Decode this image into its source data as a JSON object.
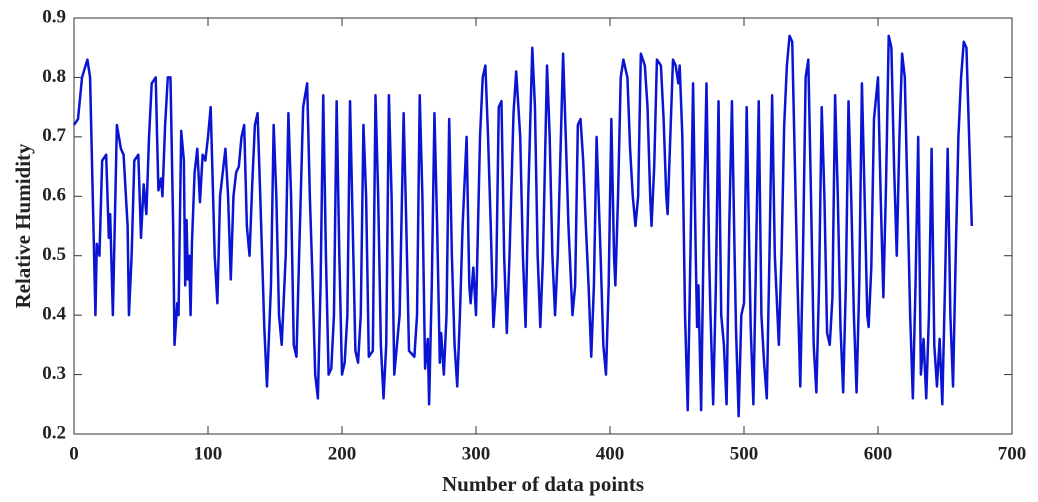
{
  "chart_data": {
    "type": "line",
    "x_label": "Number of data points",
    "y_label": "Relative Humidity",
    "color": "#0a14d2",
    "xlim": [
      0,
      700
    ],
    "xticks": [
      0,
      100,
      200,
      300,
      400,
      500,
      600,
      700
    ],
    "ylim": [
      0.2,
      0.9
    ],
    "yticks": [
      0.2,
      0.3,
      0.4,
      0.5,
      0.6,
      0.7,
      0.8,
      0.9
    ],
    "x": [
      0,
      3,
      6,
      10,
      12,
      15,
      16,
      17,
      19,
      21,
      24,
      25,
      26,
      27,
      29,
      32,
      35,
      37,
      40,
      41,
      43,
      45,
      48,
      50,
      52,
      54,
      56,
      58,
      61,
      62,
      63,
      65,
      66,
      68,
      70,
      72,
      74,
      75,
      77,
      78,
      80,
      82,
      83,
      84,
      85,
      86,
      87,
      88,
      90,
      92,
      94,
      96,
      98,
      100,
      102,
      105,
      107,
      109,
      111,
      113,
      115,
      117,
      119,
      121,
      123,
      125,
      127,
      129,
      131,
      133,
      135,
      137,
      139,
      142,
      144,
      147,
      149,
      151,
      153,
      155,
      158,
      160,
      162,
      164,
      166,
      168,
      171,
      174,
      176,
      178,
      180,
      182,
      184,
      186,
      188,
      190,
      192,
      194,
      196,
      198,
      200,
      202,
      204,
      206,
      208,
      210,
      212,
      214,
      216,
      218,
      220,
      223,
      225,
      227,
      229,
      231,
      233,
      235,
      237,
      239,
      241,
      243,
      246,
      248,
      250,
      254,
      256,
      258,
      260,
      262,
      264,
      265,
      267,
      269,
      271,
      273,
      274,
      276,
      278,
      280,
      282,
      284,
      286,
      288,
      290,
      293,
      295,
      296,
      298,
      300,
      303,
      305,
      307,
      309,
      311,
      313,
      315,
      317,
      319,
      321,
      323,
      325,
      328,
      330,
      333,
      335,
      337,
      339,
      342,
      344,
      346,
      348,
      350,
      353,
      355,
      357,
      359,
      361,
      365,
      367,
      369,
      372,
      374,
      376,
      378,
      380,
      382,
      384,
      386,
      388,
      390,
      393,
      395,
      397,
      399,
      401,
      403,
      404,
      406,
      408,
      410,
      413,
      415,
      417,
      419,
      421,
      423,
      426,
      428,
      430,
      431,
      433,
      435,
      438,
      440,
      442,
      443,
      445,
      447,
      449,
      451,
      452,
      454,
      456,
      458,
      460,
      462,
      464,
      465,
      466,
      468,
      470,
      472,
      474,
      475,
      477,
      479,
      481,
      483,
      485,
      487,
      489,
      491,
      493,
      494,
      496,
      498,
      500,
      502,
      504,
      505,
      507,
      509,
      511,
      513,
      515,
      517,
      519,
      521,
      523,
      526,
      528,
      530,
      532,
      534,
      536,
      538,
      540,
      542,
      544,
      546,
      548,
      550,
      552,
      554,
      556,
      558,
      560,
      562,
      564,
      566,
      568,
      570,
      572,
      574,
      576,
      578,
      580,
      582,
      584,
      586,
      588,
      590,
      592,
      593,
      595,
      597,
      600,
      602,
      604,
      606,
      608,
      610,
      612,
      614,
      616,
      618,
      620,
      622,
      624,
      626,
      628,
      630,
      632,
      634,
      636,
      638,
      640,
      642,
      644,
      646,
      648,
      650,
      652,
      654,
      656,
      658,
      660,
      662,
      664,
      666,
      668,
      670
    ],
    "values": [
      0.72,
      0.73,
      0.8,
      0.83,
      0.8,
      0.5,
      0.4,
      0.52,
      0.5,
      0.66,
      0.67,
      0.6,
      0.53,
      0.57,
      0.4,
      0.72,
      0.68,
      0.67,
      0.55,
      0.4,
      0.5,
      0.66,
      0.67,
      0.53,
      0.62,
      0.57,
      0.7,
      0.79,
      0.8,
      0.7,
      0.61,
      0.63,
      0.6,
      0.72,
      0.8,
      0.8,
      0.55,
      0.35,
      0.42,
      0.4,
      0.71,
      0.66,
      0.45,
      0.56,
      0.46,
      0.5,
      0.4,
      0.52,
      0.64,
      0.68,
      0.59,
      0.67,
      0.66,
      0.7,
      0.75,
      0.5,
      0.42,
      0.6,
      0.64,
      0.68,
      0.6,
      0.46,
      0.6,
      0.64,
      0.65,
      0.7,
      0.72,
      0.55,
      0.5,
      0.62,
      0.72,
      0.74,
      0.6,
      0.38,
      0.28,
      0.45,
      0.72,
      0.6,
      0.4,
      0.35,
      0.5,
      0.74,
      0.6,
      0.35,
      0.33,
      0.5,
      0.75,
      0.79,
      0.6,
      0.46,
      0.3,
      0.26,
      0.45,
      0.77,
      0.5,
      0.3,
      0.31,
      0.4,
      0.76,
      0.5,
      0.3,
      0.32,
      0.4,
      0.76,
      0.55,
      0.34,
      0.32,
      0.4,
      0.72,
      0.6,
      0.33,
      0.34,
      0.77,
      0.6,
      0.35,
      0.26,
      0.35,
      0.77,
      0.6,
      0.3,
      0.35,
      0.4,
      0.74,
      0.55,
      0.34,
      0.33,
      0.4,
      0.77,
      0.6,
      0.31,
      0.36,
      0.25,
      0.45,
      0.74,
      0.55,
      0.32,
      0.37,
      0.3,
      0.4,
      0.73,
      0.5,
      0.35,
      0.28,
      0.4,
      0.55,
      0.7,
      0.45,
      0.42,
      0.48,
      0.4,
      0.7,
      0.8,
      0.82,
      0.7,
      0.55,
      0.38,
      0.45,
      0.75,
      0.76,
      0.5,
      0.37,
      0.5,
      0.74,
      0.81,
      0.7,
      0.5,
      0.38,
      0.6,
      0.85,
      0.75,
      0.5,
      0.38,
      0.5,
      0.82,
      0.7,
      0.5,
      0.4,
      0.5,
      0.84,
      0.7,
      0.55,
      0.4,
      0.45,
      0.72,
      0.73,
      0.66,
      0.55,
      0.45,
      0.33,
      0.45,
      0.7,
      0.5,
      0.35,
      0.3,
      0.45,
      0.73,
      0.5,
      0.45,
      0.6,
      0.8,
      0.83,
      0.8,
      0.68,
      0.6,
      0.55,
      0.6,
      0.84,
      0.82,
      0.75,
      0.6,
      0.55,
      0.65,
      0.83,
      0.82,
      0.73,
      0.6,
      0.57,
      0.7,
      0.83,
      0.82,
      0.79,
      0.82,
      0.7,
      0.4,
      0.24,
      0.5,
      0.79,
      0.5,
      0.38,
      0.45,
      0.24,
      0.55,
      0.79,
      0.5,
      0.4,
      0.25,
      0.45,
      0.76,
      0.4,
      0.35,
      0.25,
      0.55,
      0.76,
      0.5,
      0.38,
      0.23,
      0.4,
      0.42,
      0.75,
      0.5,
      0.38,
      0.25,
      0.5,
      0.76,
      0.4,
      0.32,
      0.26,
      0.5,
      0.77,
      0.5,
      0.35,
      0.5,
      0.72,
      0.82,
      0.87,
      0.86,
      0.65,
      0.45,
      0.28,
      0.5,
      0.8,
      0.83,
      0.6,
      0.35,
      0.27,
      0.45,
      0.75,
      0.6,
      0.37,
      0.35,
      0.43,
      0.77,
      0.6,
      0.38,
      0.27,
      0.45,
      0.76,
      0.6,
      0.4,
      0.27,
      0.45,
      0.79,
      0.6,
      0.4,
      0.38,
      0.48,
      0.73,
      0.8,
      0.6,
      0.43,
      0.62,
      0.87,
      0.85,
      0.65,
      0.5,
      0.7,
      0.84,
      0.8,
      0.6,
      0.4,
      0.26,
      0.45,
      0.7,
      0.3,
      0.36,
      0.26,
      0.4,
      0.68,
      0.35,
      0.28,
      0.36,
      0.25,
      0.45,
      0.68,
      0.4,
      0.28,
      0.5,
      0.7,
      0.8,
      0.86,
      0.85,
      0.7,
      0.55
    ]
  }
}
